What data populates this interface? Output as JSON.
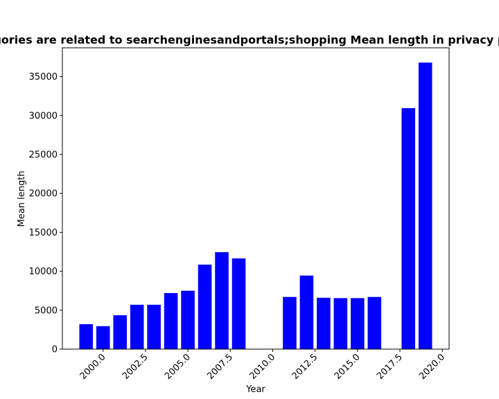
{
  "chart_data": {
    "type": "bar",
    "title": "Categories are related to searchenginesandportals;shopping Mean length in privacy policies",
    "xlabel": "Year",
    "ylabel": "Mean length",
    "x": [
      1999,
      2000,
      2001,
      2002,
      2003,
      2004,
      2005,
      2006,
      2007,
      2008,
      2011,
      2012,
      2013,
      2014,
      2015,
      2016,
      2018,
      2019
    ],
    "values": [
      3200,
      2950,
      4350,
      5700,
      5700,
      7200,
      7500,
      10850,
      12450,
      11650,
      6700,
      9450,
      6600,
      6550,
      6550,
      6700,
      30950,
      36800
    ],
    "xlim": [
      1997.6,
      2020.4
    ],
    "ylim": [
      0,
      38700
    ],
    "xticks": [
      2000.0,
      2002.5,
      2005.0,
      2007.5,
      2010.0,
      2012.5,
      2015.0,
      2017.5,
      2020.0
    ],
    "xtick_labels": [
      "2000.0",
      "2002.5",
      "2005.0",
      "2007.5",
      "2010.0",
      "2012.5",
      "2015.0",
      "2017.5",
      "2020.0"
    ],
    "yticks": [
      0,
      5000,
      10000,
      15000,
      20000,
      25000,
      30000,
      35000
    ],
    "ytick_labels": [
      "0",
      "5000",
      "10000",
      "15000",
      "20000",
      "25000",
      "30000",
      "35000"
    ],
    "bar_color": "#0000ff",
    "grid": false,
    "legend": false
  }
}
